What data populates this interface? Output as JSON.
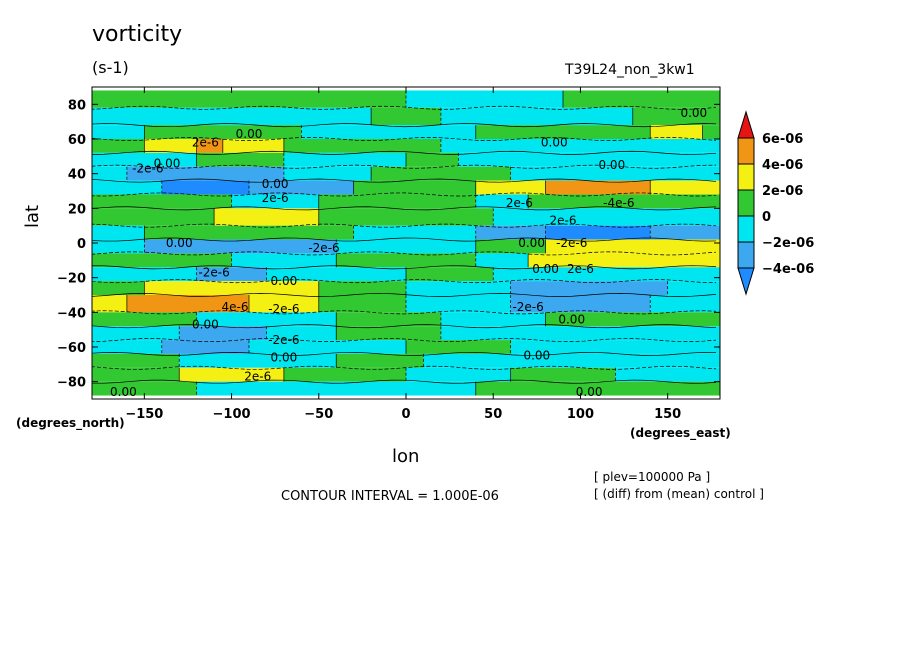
{
  "header": {
    "title": "vorticity",
    "units": "(s-1)",
    "run_label": "T39L24_non_3kw1"
  },
  "footer": {
    "contour_interval": "CONTOUR INTERVAL = 1.000E-06",
    "note_plev": "[ plev=100000 Pa ]",
    "note_diff": "[ (diff) from (mean) control ]"
  },
  "colors": {
    "lt_m4": "#1e8cff",
    "m4_m2": "#3ca8f0",
    "m2_0": "#00e6f0",
    "0_2": "#32c832",
    "2_4": "#f5f014",
    "4_6": "#f09614",
    "gt_6": "#e61414"
  },
  "chart_data": {
    "type": "heatmap",
    "title": "vorticity",
    "units": "(s-1)",
    "xlabel": "lon",
    "ylabel": "lat",
    "x_units": "(degrees_east)",
    "y_units": "(degrees_north)",
    "xlim": [
      -180,
      180
    ],
    "ylim": [
      -90,
      90
    ],
    "xticks": [
      -150,
      -100,
      -50,
      0,
      50,
      100,
      150
    ],
    "yticks": [
      80,
      60,
      40,
      20,
      0,
      -20,
      -40,
      -60,
      -80
    ],
    "colorbar": {
      "levels": [
        "-4e-06",
        "-2e-06",
        "0",
        "2e-06",
        "4e-06",
        "6e-06"
      ],
      "extend": "both"
    },
    "contour_labels": [
      {
        "text": "0.00",
        "lon": -90,
        "lat": 63
      },
      {
        "text": "2e-6",
        "lon": -115,
        "lat": 58
      },
      {
        "text": "-2e-6",
        "lon": -148,
        "lat": 43
      },
      {
        "text": "0.00",
        "lon": -137,
        "lat": 46
      },
      {
        "text": "0.00",
        "lon": -75,
        "lat": 34
      },
      {
        "text": "2e-6",
        "lon": -75,
        "lat": 26
      },
      {
        "text": "0.00",
        "lon": -130,
        "lat": 0
      },
      {
        "text": "-2e-6",
        "lon": -47,
        "lat": -3
      },
      {
        "text": "-2e-6",
        "lon": -110,
        "lat": -17
      },
      {
        "text": "0.00",
        "lon": -70,
        "lat": -22
      },
      {
        "text": "4e-6",
        "lon": -98,
        "lat": -37
      },
      {
        "text": "-2e-6",
        "lon": -70,
        "lat": -38
      },
      {
        "text": "0.00",
        "lon": -115,
        "lat": -47
      },
      {
        "text": "-2e-6",
        "lon": -70,
        "lat": -56
      },
      {
        "text": "0.00",
        "lon": -70,
        "lat": -66
      },
      {
        "text": "2e-6",
        "lon": -85,
        "lat": -77
      },
      {
        "text": "0.00",
        "lon": -162,
        "lat": -86
      },
      {
        "text": "0.00",
        "lon": 85,
        "lat": 58
      },
      {
        "text": "0.00",
        "lon": 118,
        "lat": 45
      },
      {
        "text": "2e-6",
        "lon": 65,
        "lat": 23
      },
      {
        "text": "-4e-6",
        "lon": 122,
        "lat": 23
      },
      {
        "text": "2e-6",
        "lon": 90,
        "lat": 13
      },
      {
        "text": "-2e-6",
        "lon": 95,
        "lat": 0
      },
      {
        "text": "0.00",
        "lon": 72,
        "lat": 0
      },
      {
        "text": "0.00",
        "lon": 80,
        "lat": -15
      },
      {
        "text": "2e-6",
        "lon": 100,
        "lat": -15
      },
      {
        "text": "-2e-6",
        "lon": 70,
        "lat": -37
      },
      {
        "text": "0.00",
        "lon": 95,
        "lat": -44
      },
      {
        "text": "0.00",
        "lon": 75,
        "lat": -65
      },
      {
        "text": "0.00",
        "lon": 105,
        "lat": -86
      },
      {
        "text": "0.00",
        "lon": 165,
        "lat": 75
      }
    ],
    "bands": [
      {
        "lat": [
          88,
          78
        ],
        "segments": [
          [
            -180,
            0,
            "0_2"
          ],
          [
            0,
            90,
            "m2_0"
          ],
          [
            90,
            180,
            "0_2"
          ]
        ]
      },
      {
        "lat": [
          78,
          68
        ],
        "segments": [
          [
            -180,
            -20,
            "m2_0"
          ],
          [
            -20,
            20,
            "0_2"
          ],
          [
            20,
            130,
            "m2_0"
          ],
          [
            130,
            180,
            "0_2"
          ]
        ]
      },
      {
        "lat": [
          68,
          60
        ],
        "segments": [
          [
            -180,
            -150,
            "m2_0"
          ],
          [
            -150,
            -60,
            "0_2"
          ],
          [
            -60,
            40,
            "m2_0"
          ],
          [
            40,
            140,
            "0_2"
          ],
          [
            140,
            170,
            "2_4"
          ],
          [
            170,
            180,
            "0_2"
          ]
        ]
      },
      {
        "lat": [
          60,
          52
        ],
        "segments": [
          [
            -180,
            -150,
            "0_2"
          ],
          [
            -150,
            -120,
            "2_4"
          ],
          [
            -120,
            -105,
            "4_6"
          ],
          [
            -105,
            -70,
            "2_4"
          ],
          [
            -70,
            20,
            "0_2"
          ],
          [
            20,
            180,
            "m2_0"
          ]
        ]
      },
      {
        "lat": [
          52,
          44
        ],
        "segments": [
          [
            -180,
            -120,
            "m2_0"
          ],
          [
            -120,
            -70,
            "0_2"
          ],
          [
            -70,
            0,
            "m2_0"
          ],
          [
            0,
            30,
            "0_2"
          ],
          [
            30,
            180,
            "m2_0"
          ]
        ]
      },
      {
        "lat": [
          44,
          36
        ],
        "segments": [
          [
            -180,
            -160,
            "m2_0"
          ],
          [
            -160,
            -70,
            "m4_m2"
          ],
          [
            -70,
            -20,
            "m2_0"
          ],
          [
            -20,
            60,
            "0_2"
          ],
          [
            60,
            180,
            "m2_0"
          ]
        ]
      },
      {
        "lat": [
          36,
          28
        ],
        "segments": [
          [
            -180,
            -140,
            "m2_0"
          ],
          [
            -140,
            -90,
            "lt_m4"
          ],
          [
            -90,
            -30,
            "m4_m2"
          ],
          [
            -30,
            40,
            "0_2"
          ],
          [
            40,
            80,
            "2_4"
          ],
          [
            80,
            140,
            "4_6"
          ],
          [
            140,
            180,
            "2_4"
          ]
        ]
      },
      {
        "lat": [
          28,
          20
        ],
        "segments": [
          [
            -180,
            -100,
            "0_2"
          ],
          [
            -100,
            -50,
            "m2_0"
          ],
          [
            -50,
            40,
            "0_2"
          ],
          [
            40,
            70,
            "m2_0"
          ],
          [
            70,
            180,
            "0_2"
          ]
        ]
      },
      {
        "lat": [
          20,
          10
        ],
        "segments": [
          [
            -180,
            -110,
            "0_2"
          ],
          [
            -110,
            -50,
            "2_4"
          ],
          [
            -50,
            50,
            "0_2"
          ],
          [
            50,
            180,
            "m2_0"
          ]
        ]
      },
      {
        "lat": [
          10,
          2
        ],
        "segments": [
          [
            -180,
            -150,
            "m2_0"
          ],
          [
            -150,
            -30,
            "0_2"
          ],
          [
            -30,
            40,
            "m2_0"
          ],
          [
            40,
            80,
            "m4_m2"
          ],
          [
            80,
            140,
            "lt_m4"
          ],
          [
            140,
            180,
            "m4_m2"
          ]
        ]
      },
      {
        "lat": [
          2,
          -6
        ],
        "segments": [
          [
            -180,
            -150,
            "m2_0"
          ],
          [
            -150,
            -40,
            "m4_m2"
          ],
          [
            -40,
            40,
            "m2_0"
          ],
          [
            40,
            80,
            "0_2"
          ],
          [
            80,
            180,
            "2_4"
          ]
        ]
      },
      {
        "lat": [
          -6,
          -14
        ],
        "segments": [
          [
            -180,
            -100,
            "0_2"
          ],
          [
            -100,
            -40,
            "m2_0"
          ],
          [
            -40,
            40,
            "0_2"
          ],
          [
            40,
            70,
            "m2_0"
          ],
          [
            70,
            180,
            "2_4"
          ]
        ]
      },
      {
        "lat": [
          -14,
          -22
        ],
        "segments": [
          [
            -180,
            -120,
            "m2_0"
          ],
          [
            -120,
            -80,
            "m4_m2"
          ],
          [
            -80,
            0,
            "m2_0"
          ],
          [
            0,
            50,
            "0_2"
          ],
          [
            50,
            180,
            "m2_0"
          ]
        ]
      },
      {
        "lat": [
          -22,
          -30
        ],
        "segments": [
          [
            -180,
            -150,
            "0_2"
          ],
          [
            -150,
            -50,
            "2_4"
          ],
          [
            -50,
            0,
            "0_2"
          ],
          [
            0,
            60,
            "m2_0"
          ],
          [
            60,
            150,
            "m4_m2"
          ],
          [
            150,
            180,
            "m2_0"
          ]
        ]
      },
      {
        "lat": [
          -30,
          -40
        ],
        "segments": [
          [
            -180,
            -160,
            "2_4"
          ],
          [
            -160,
            -90,
            "4_6"
          ],
          [
            -90,
            -50,
            "2_4"
          ],
          [
            -50,
            0,
            "0_2"
          ],
          [
            0,
            60,
            "m2_0"
          ],
          [
            60,
            140,
            "m4_m2"
          ],
          [
            140,
            180,
            "m2_0"
          ]
        ]
      },
      {
        "lat": [
          -40,
          -48
        ],
        "segments": [
          [
            -180,
            -120,
            "0_2"
          ],
          [
            -120,
            -40,
            "m2_0"
          ],
          [
            -40,
            20,
            "0_2"
          ],
          [
            20,
            80,
            "m2_0"
          ],
          [
            80,
            180,
            "0_2"
          ]
        ]
      },
      {
        "lat": [
          -48,
          -56
        ],
        "segments": [
          [
            -180,
            -130,
            "m2_0"
          ],
          [
            -130,
            -80,
            "m4_m2"
          ],
          [
            -80,
            -40,
            "m2_0"
          ],
          [
            -40,
            20,
            "0_2"
          ],
          [
            20,
            180,
            "m2_0"
          ]
        ]
      },
      {
        "lat": [
          -56,
          -64
        ],
        "segments": [
          [
            -180,
            -140,
            "m2_0"
          ],
          [
            -140,
            -90,
            "m4_m2"
          ],
          [
            -90,
            0,
            "m2_0"
          ],
          [
            0,
            60,
            "0_2"
          ],
          [
            60,
            180,
            "m2_0"
          ]
        ]
      },
      {
        "lat": [
          -64,
          -72
        ],
        "segments": [
          [
            -180,
            -130,
            "0_2"
          ],
          [
            -130,
            -40,
            "m2_0"
          ],
          [
            -40,
            10,
            "0_2"
          ],
          [
            10,
            180,
            "m2_0"
          ]
        ]
      },
      {
        "lat": [
          -72,
          -80
        ],
        "segments": [
          [
            -180,
            -130,
            "0_2"
          ],
          [
            -130,
            -70,
            "2_4"
          ],
          [
            -70,
            0,
            "0_2"
          ],
          [
            0,
            60,
            "m2_0"
          ],
          [
            60,
            120,
            "0_2"
          ],
          [
            120,
            180,
            "m2_0"
          ]
        ]
      },
      {
        "lat": [
          -80,
          -88
        ],
        "segments": [
          [
            -180,
            -120,
            "0_2"
          ],
          [
            -120,
            40,
            "m2_0"
          ],
          [
            40,
            180,
            "0_2"
          ]
        ]
      }
    ]
  }
}
